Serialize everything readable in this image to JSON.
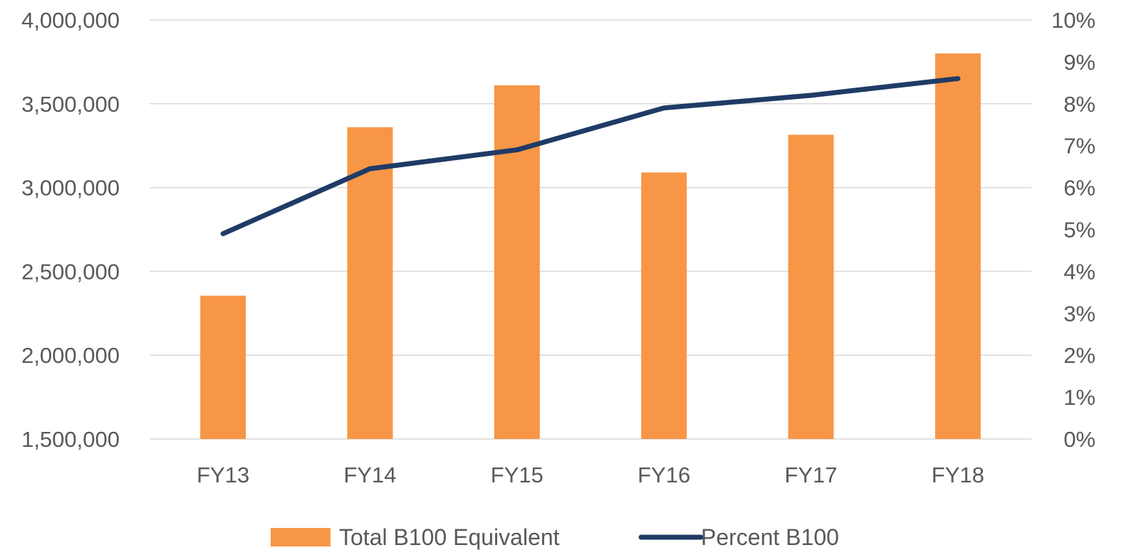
{
  "chart_data": {
    "type": "bar",
    "categories": [
      "FY13",
      "FY14",
      "FY15",
      "FY16",
      "FY17",
      "FY18"
    ],
    "series": [
      {
        "name": "Total B100 Equivalent",
        "type": "bar",
        "axis": "left",
        "color": "#F79646",
        "values": [
          2355000,
          3360000,
          3610000,
          3090000,
          3315000,
          3800000
        ]
      },
      {
        "name": "Percent B100",
        "type": "line",
        "axis": "right",
        "color": "#1F3B66",
        "values": [
          4.9,
          6.45,
          6.9,
          7.9,
          8.2,
          8.6
        ]
      }
    ],
    "y_left": {
      "ylim": [
        1500000,
        4000000
      ],
      "ticks": [
        1500000,
        2000000,
        2500000,
        3000000,
        3500000,
        4000000
      ],
      "tick_labels": [
        "1,500,000",
        "2,000,000",
        "2,500,000",
        "3,000,000",
        "3,500,000",
        "4,000,000"
      ]
    },
    "y_right": {
      "ylim": [
        0,
        10
      ],
      "ticks": [
        0,
        1,
        2,
        3,
        4,
        5,
        6,
        7,
        8,
        9,
        10
      ],
      "tick_labels": [
        "0%",
        "1%",
        "2%",
        "3%",
        "4%",
        "5%",
        "6%",
        "7%",
        "8%",
        "9%",
        "10%"
      ]
    },
    "title": "",
    "xlabel": "",
    "ylabel": "",
    "grid": true,
    "legend_position": "bottom"
  }
}
